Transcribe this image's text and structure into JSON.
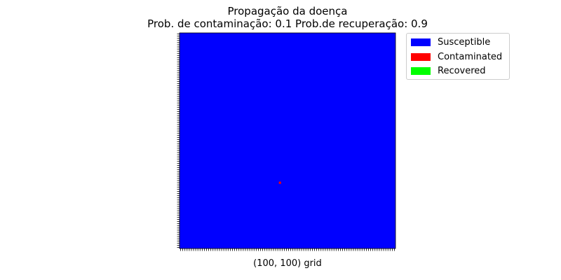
{
  "chart_data": {
    "type": "heatmap",
    "title": "Propagação da doença",
    "subtitle": "Prob. de contaminação: 0.1 Prob.de recuperação: 0.9",
    "xlabel": "(100, 100) grid",
    "ylabel": "",
    "grid_size": [
      100,
      100
    ],
    "x_ticks": 100,
    "y_ticks": 100,
    "tick_labels_visible": false,
    "grid": false,
    "legend_position": "upper-right, outside plot",
    "states": [
      {
        "name": "Susceptible",
        "color": "#0000ff"
      },
      {
        "name": "Contaminated",
        "color": "#ff0000"
      },
      {
        "name": "Recovered",
        "color": "#00ff00"
      }
    ],
    "background_state": "Susceptible",
    "cells": [
      {
        "row": 69,
        "col": 46,
        "state": "Contaminated"
      }
    ]
  }
}
